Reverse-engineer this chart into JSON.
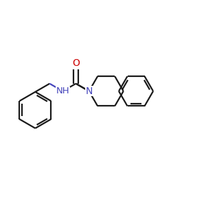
{
  "background_color": "#ffffff",
  "bond_color": "#1a1a1a",
  "nitrogen_color": "#4444bb",
  "oxygen_color": "#cc0000",
  "line_width": 1.6,
  "font_size": 9.5,
  "figsize": [
    3.0,
    3.0
  ],
  "dpi": 100,
  "xlim": [
    0.0,
    1.0
  ],
  "ylim": [
    0.1,
    0.9
  ]
}
